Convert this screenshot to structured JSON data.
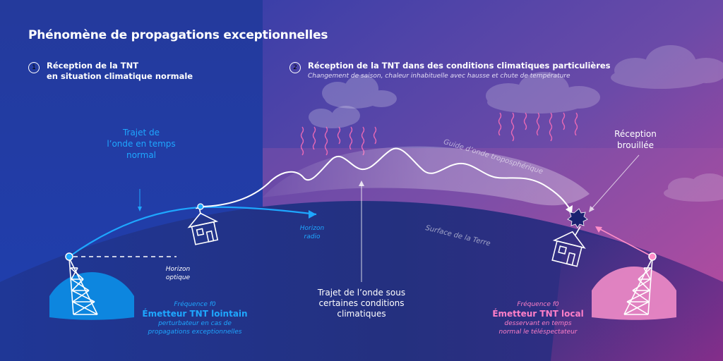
{
  "title": "Phénomène de propagations exceptionnelles",
  "section1": {
    "number": "1",
    "title_line1": "Réception de la TNT",
    "title_line2": "en situation climatique normale"
  },
  "section2": {
    "number": "2",
    "title": "Réception de la TNT dans des conditions climatiques particulières",
    "subtitle": "Changement de saison, chaleur inhabituelle avec hausse et chute de température"
  },
  "labels": {
    "normal_path_l1": "Trajet de",
    "normal_path_l2": "l’onde en temps",
    "normal_path_l3": "normal",
    "waveguide": "Guide d’onde troposphérique",
    "reception_l1": "Réception",
    "reception_l2": "brouillée",
    "horizon_radio_l1": "Horizon",
    "horizon_radio_l2": "radio",
    "horizon_optique_l1": "Horizon",
    "horizon_optique_l2": "optique",
    "earth_surface": "Surface de la Terre",
    "special_path_l1": "Trajet de l’onde sous",
    "special_path_l2": "certaines conditions",
    "special_path_l3": "climatiques"
  },
  "far_transmitter": {
    "frequency": "Fréquence f0",
    "name": "Émetteur TNT lointain",
    "desc_l1": "perturbateur en cas de",
    "desc_l2": "propagations exceptionnelles"
  },
  "local_transmitter": {
    "frequency": "Fréquence f0",
    "name": "Émetteur TNT local",
    "desc_l1": "desservant en temps",
    "desc_l2": "normal le téléspectateur"
  },
  "colors": {
    "blue_accent": "#1ea7ff",
    "pink_accent": "#ff7fc8",
    "earth": "#24307f"
  }
}
